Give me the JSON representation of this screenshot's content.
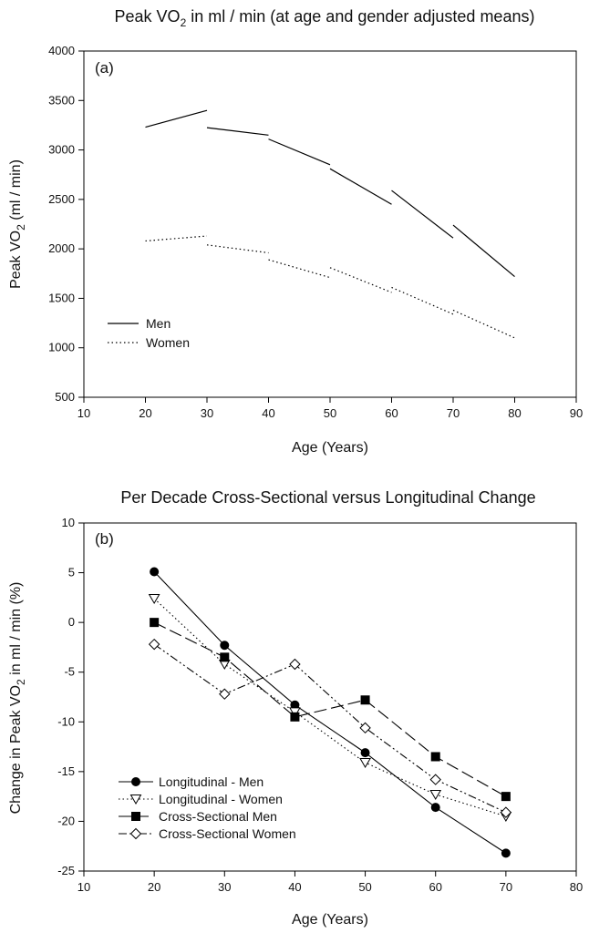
{
  "chart_data": [
    {
      "type": "line",
      "panel_label": "(a)",
      "title_parts": [
        "Peak VO",
        "2",
        " in ml / min (at age and gender adjusted means)"
      ],
      "xlabel": "Age (Years)",
      "ylabel_parts": [
        "Peak VO",
        "2",
        " (ml / min)"
      ],
      "xlim": [
        10,
        90
      ],
      "ylim": [
        500,
        4000
      ],
      "xticks": [
        10,
        20,
        30,
        40,
        50,
        60,
        70,
        80,
        90
      ],
      "yticks": [
        500,
        1000,
        1500,
        2000,
        2500,
        3000,
        3500,
        4000
      ],
      "legend_position": "bottom-left",
      "series": [
        {
          "name": "Men",
          "style": "solid",
          "segments": [
            [
              [
                20,
                3230
              ],
              [
                30,
                3400
              ]
            ],
            [
              [
                30,
                3225
              ],
              [
                40,
                3150
              ]
            ],
            [
              [
                40,
                3110
              ],
              [
                50,
                2850
              ]
            ],
            [
              [
                50,
                2810
              ],
              [
                60,
                2450
              ]
            ],
            [
              [
                60,
                2590
              ],
              [
                70,
                2110
              ]
            ],
            [
              [
                70,
                2240
              ],
              [
                80,
                1720
              ]
            ]
          ]
        },
        {
          "name": "Women",
          "style": "dotted",
          "segments": [
            [
              [
                20,
                2080
              ],
              [
                30,
                2130
              ]
            ],
            [
              [
                30,
                2040
              ],
              [
                40,
                1960
              ]
            ],
            [
              [
                40,
                1890
              ],
              [
                50,
                1710
              ]
            ],
            [
              [
                50,
                1810
              ],
              [
                60,
                1560
              ]
            ],
            [
              [
                60,
                1610
              ],
              [
                70,
                1340
              ]
            ],
            [
              [
                70,
                1380
              ],
              [
                80,
                1100
              ]
            ]
          ]
        }
      ]
    },
    {
      "type": "line",
      "panel_label": "(b)",
      "title": "Per Decade Cross-Sectional versus Longitudinal Change",
      "xlabel": "Age (Years)",
      "ylabel_parts": [
        "Change in Peak VO",
        "2",
        " in ml  / min (%)"
      ],
      "xlim": [
        10,
        80
      ],
      "ylim": [
        -25,
        10
      ],
      "xticks": [
        10,
        20,
        30,
        40,
        50,
        60,
        70,
        80
      ],
      "yticks": [
        -25,
        -20,
        -15,
        -10,
        -5,
        0,
        5,
        10
      ],
      "legend_position": "bottom-left",
      "x": [
        20,
        30,
        40,
        50,
        60,
        70
      ],
      "series": [
        {
          "name": "Longitudinal - Men",
          "marker": "filled-circle",
          "dash": "solid",
          "values": [
            5.1,
            -2.3,
            -8.3,
            -13.1,
            -18.6,
            -23.2
          ]
        },
        {
          "name": "Longitudinal - Women",
          "marker": "open-triangle-down",
          "dash": "dotted",
          "values": [
            2.4,
            -4.2,
            -9.0,
            -14.1,
            -17.3,
            -19.5
          ]
        },
        {
          "name": "Cross-Sectional Men",
          "marker": "filled-square",
          "dash": "long-dash",
          "values": [
            0.0,
            -3.5,
            -9.5,
            -7.8,
            -13.5,
            -17.5
          ]
        },
        {
          "name": "Cross-Sectional Women",
          "marker": "open-diamond",
          "dash": "dash-dot-dot",
          "values": [
            -2.2,
            -7.2,
            -4.2,
            -10.6,
            -15.8,
            -19.1
          ]
        }
      ]
    }
  ]
}
